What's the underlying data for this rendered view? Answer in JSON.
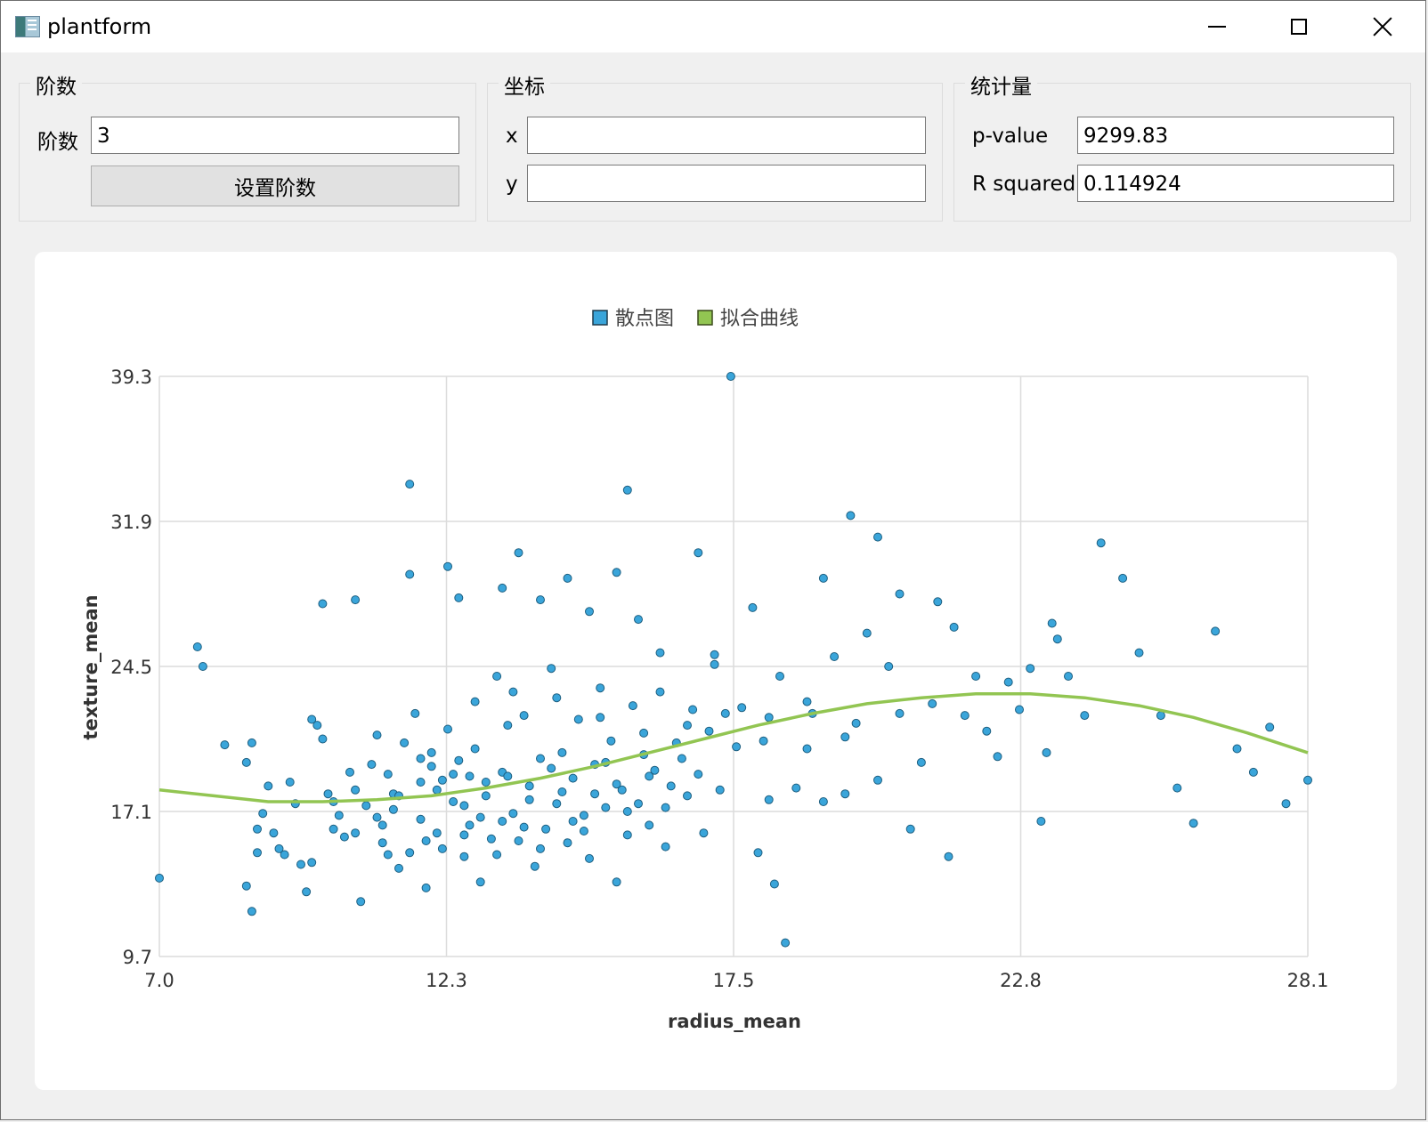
{
  "window": {
    "title": "plantform"
  },
  "groups": {
    "order": {
      "title": "阶数",
      "field_label": "阶数",
      "field_value": "3",
      "button_label": "设置阶数"
    },
    "coords": {
      "title": "坐标",
      "x_label": "x",
      "x_value": "",
      "y_label": "y",
      "y_value": ""
    },
    "stats": {
      "title": "统计量",
      "pvalue_label": "p-value",
      "pvalue_value": "9299.83",
      "r2_label": "R squared",
      "r2_value": "0.114924"
    }
  },
  "colors": {
    "scatter": "#3aa5da",
    "scatter_edge": "#1e5f80",
    "curve": "#92c552",
    "grid": "#dcdcdc"
  },
  "chart_data": {
    "type": "scatter",
    "xlabel": "radius_mean",
    "ylabel": "texture_mean",
    "xlim": [
      7.0,
      28.1
    ],
    "ylim": [
      9.7,
      39.3
    ],
    "x_ticks": [
      "7.0",
      "12.3",
      "17.5",
      "22.8",
      "28.1"
    ],
    "y_ticks": [
      "39.3",
      "31.9",
      "24.5",
      "17.1",
      "9.7"
    ],
    "grid": true,
    "legend_position": "top-center",
    "series": [
      {
        "name": "散点图",
        "kind": "scatter",
        "points": [
          [
            7.0,
            13.7
          ],
          [
            7.7,
            25.5
          ],
          [
            7.8,
            24.5
          ],
          [
            8.2,
            20.5
          ],
          [
            8.6,
            19.6
          ],
          [
            8.7,
            20.6
          ],
          [
            8.6,
            13.3
          ],
          [
            8.7,
            12.0
          ],
          [
            8.8,
            16.2
          ],
          [
            8.8,
            15.0
          ],
          [
            8.9,
            17.0
          ],
          [
            9.0,
            18.4
          ],
          [
            9.1,
            16.0
          ],
          [
            9.2,
            15.2
          ],
          [
            9.3,
            14.9
          ],
          [
            9.4,
            18.6
          ],
          [
            9.5,
            17.5
          ],
          [
            9.6,
            14.4
          ],
          [
            9.7,
            13.0
          ],
          [
            9.8,
            14.5
          ],
          [
            9.8,
            21.8
          ],
          [
            9.9,
            21.5
          ],
          [
            10.0,
            20.8
          ],
          [
            10.0,
            27.7
          ],
          [
            10.1,
            18.0
          ],
          [
            10.2,
            16.2
          ],
          [
            10.3,
            16.9
          ],
          [
            10.4,
            15.8
          ],
          [
            10.5,
            19.1
          ],
          [
            10.6,
            18.2
          ],
          [
            10.6,
            27.9
          ],
          [
            10.7,
            12.5
          ],
          [
            10.8,
            17.4
          ],
          [
            10.9,
            19.5
          ],
          [
            11.0,
            21.0
          ],
          [
            11.1,
            15.5
          ],
          [
            11.1,
            16.4
          ],
          [
            11.2,
            19.0
          ],
          [
            11.3,
            18.0
          ],
          [
            11.3,
            17.2
          ],
          [
            11.4,
            14.2
          ],
          [
            11.5,
            20.6
          ],
          [
            11.6,
            15.0
          ],
          [
            11.7,
            22.1
          ],
          [
            11.8,
            18.6
          ],
          [
            11.8,
            16.7
          ],
          [
            11.9,
            13.2
          ],
          [
            12.0,
            19.4
          ],
          [
            12.1,
            18.2
          ],
          [
            12.1,
            16.0
          ],
          [
            12.2,
            15.2
          ],
          [
            12.3,
            21.3
          ],
          [
            12.4,
            17.6
          ],
          [
            12.5,
            19.7
          ],
          [
            12.6,
            14.8
          ],
          [
            12.7,
            18.9
          ],
          [
            12.7,
            16.4
          ],
          [
            12.8,
            20.3
          ],
          [
            12.9,
            13.5
          ],
          [
            13.0,
            17.9
          ],
          [
            13.1,
            15.7
          ],
          [
            13.2,
            24.0
          ],
          [
            13.3,
            19.1
          ],
          [
            13.3,
            16.6
          ],
          [
            13.4,
            21.5
          ],
          [
            13.5,
            17.0
          ],
          [
            13.6,
            15.6
          ],
          [
            13.7,
            22.0
          ],
          [
            13.8,
            18.4
          ],
          [
            13.9,
            14.3
          ],
          [
            14.0,
            19.8
          ],
          [
            14.1,
            16.2
          ],
          [
            14.2,
            24.4
          ],
          [
            14.3,
            17.5
          ],
          [
            14.4,
            20.1
          ],
          [
            14.5,
            15.5
          ],
          [
            14.6,
            18.8
          ],
          [
            14.7,
            21.8
          ],
          [
            14.8,
            16.9
          ],
          [
            14.9,
            14.7
          ],
          [
            15.0,
            19.5
          ],
          [
            15.1,
            23.4
          ],
          [
            15.2,
            17.3
          ],
          [
            15.3,
            20.7
          ],
          [
            15.4,
            13.5
          ],
          [
            15.5,
            18.2
          ],
          [
            15.6,
            15.9
          ],
          [
            15.7,
            22.5
          ],
          [
            15.8,
            17.5
          ],
          [
            15.9,
            20.0
          ],
          [
            16.0,
            16.4
          ],
          [
            16.1,
            19.2
          ],
          [
            16.2,
            23.2
          ],
          [
            16.3,
            15.3
          ],
          [
            16.4,
            18.4
          ],
          [
            16.5,
            20.6
          ],
          [
            16.7,
            17.9
          ],
          [
            16.8,
            22.3
          ],
          [
            16.9,
            19.0
          ],
          [
            17.0,
            16.0
          ],
          [
            17.1,
            21.2
          ],
          [
            17.2,
            24.6
          ],
          [
            17.3,
            18.2
          ],
          [
            17.5,
            39.3
          ],
          [
            17.6,
            20.4
          ],
          [
            17.7,
            22.4
          ],
          [
            17.9,
            27.5
          ],
          [
            18.0,
            15.0
          ],
          [
            18.1,
            20.7
          ],
          [
            18.2,
            17.7
          ],
          [
            18.3,
            13.4
          ],
          [
            18.4,
            24.0
          ],
          [
            18.5,
            10.4
          ],
          [
            18.7,
            18.3
          ],
          [
            18.9,
            20.3
          ],
          [
            19.0,
            22.1
          ],
          [
            19.2,
            17.6
          ],
          [
            19.4,
            25.0
          ],
          [
            19.6,
            18.0
          ],
          [
            19.8,
            21.6
          ],
          [
            20.0,
            26.2
          ],
          [
            20.2,
            18.7
          ],
          [
            20.4,
            24.5
          ],
          [
            20.6,
            22.1
          ],
          [
            20.8,
            16.2
          ],
          [
            21.0,
            19.6
          ],
          [
            21.2,
            22.6
          ],
          [
            21.3,
            27.8
          ],
          [
            21.5,
            14.8
          ],
          [
            21.6,
            26.5
          ],
          [
            21.8,
            22.0
          ],
          [
            22.0,
            24.0
          ],
          [
            22.2,
            21.2
          ],
          [
            22.4,
            19.9
          ],
          [
            22.6,
            23.7
          ],
          [
            22.8,
            22.3
          ],
          [
            23.0,
            24.4
          ],
          [
            23.2,
            16.6
          ],
          [
            23.3,
            20.1
          ],
          [
            23.5,
            25.9
          ],
          [
            23.7,
            24.0
          ],
          [
            24.0,
            22.0
          ],
          [
            24.3,
            30.8
          ],
          [
            24.7,
            29.0
          ],
          [
            25.0,
            25.2
          ],
          [
            25.4,
            22.0
          ],
          [
            25.7,
            18.3
          ],
          [
            26.0,
            16.5
          ],
          [
            26.4,
            26.3
          ],
          [
            26.8,
            20.3
          ],
          [
            27.1,
            19.1
          ],
          [
            27.4,
            21.4
          ],
          [
            27.7,
            17.5
          ],
          [
            28.1,
            18.7
          ],
          [
            11.6,
            33.8
          ],
          [
            15.6,
            33.5
          ],
          [
            16.9,
            30.3
          ],
          [
            12.3,
            29.6
          ],
          [
            13.6,
            30.3
          ],
          [
            14.5,
            29.0
          ],
          [
            15.4,
            29.3
          ],
          [
            20.6,
            28.2
          ],
          [
            19.2,
            29.0
          ],
          [
            23.4,
            26.7
          ],
          [
            19.7,
            32.2
          ],
          [
            20.2,
            31.1
          ],
          [
            11.6,
            29.2
          ],
          [
            12.5,
            28.0
          ],
          [
            13.3,
            28.5
          ],
          [
            14.0,
            27.9
          ],
          [
            14.9,
            27.3
          ],
          [
            15.8,
            26.9
          ],
          [
            16.2,
            25.2
          ],
          [
            17.2,
            25.1
          ],
          [
            12.0,
            20.1
          ],
          [
            12.4,
            19.0
          ],
          [
            12.6,
            17.4
          ],
          [
            13.0,
            18.6
          ],
          [
            13.4,
            18.9
          ],
          [
            13.8,
            17.7
          ],
          [
            14.2,
            19.3
          ],
          [
            14.6,
            16.6
          ],
          [
            15.0,
            18.0
          ],
          [
            15.4,
            18.5
          ],
          [
            11.0,
            16.8
          ],
          [
            11.4,
            17.9
          ],
          [
            11.8,
            19.8
          ],
          [
            12.2,
            18.7
          ],
          [
            12.9,
            16.8
          ],
          [
            13.7,
            16.3
          ],
          [
            14.4,
            18.1
          ],
          [
            15.2,
            19.6
          ],
          [
            16.0,
            18.9
          ],
          [
            16.6,
            19.8
          ],
          [
            10.2,
            17.6
          ],
          [
            10.6,
            16.0
          ],
          [
            11.2,
            14.9
          ],
          [
            11.9,
            15.6
          ],
          [
            12.6,
            15.9
          ],
          [
            13.2,
            14.9
          ],
          [
            14.0,
            15.2
          ],
          [
            14.8,
            16.1
          ],
          [
            15.6,
            17.1
          ],
          [
            16.3,
            17.3
          ],
          [
            12.8,
            22.7
          ],
          [
            13.5,
            23.2
          ],
          [
            14.3,
            22.9
          ],
          [
            15.1,
            21.9
          ],
          [
            15.9,
            21.1
          ],
          [
            16.7,
            21.5
          ],
          [
            17.4,
            22.1
          ],
          [
            18.2,
            21.9
          ],
          [
            18.9,
            22.7
          ],
          [
            19.6,
            20.9
          ]
        ]
      },
      {
        "name": "拟合曲线",
        "kind": "curve",
        "polyfit_degree": 3,
        "points": [
          [
            7.0,
            18.2
          ],
          [
            8.0,
            17.9
          ],
          [
            9.0,
            17.6
          ],
          [
            10.0,
            17.6
          ],
          [
            11.0,
            17.7
          ],
          [
            12.0,
            17.9
          ],
          [
            13.0,
            18.3
          ],
          [
            14.0,
            18.8
          ],
          [
            15.0,
            19.4
          ],
          [
            16.0,
            20.1
          ],
          [
            17.0,
            20.8
          ],
          [
            18.0,
            21.5
          ],
          [
            19.0,
            22.1
          ],
          [
            20.0,
            22.6
          ],
          [
            21.0,
            22.9
          ],
          [
            22.0,
            23.1
          ],
          [
            23.0,
            23.1
          ],
          [
            24.0,
            22.9
          ],
          [
            25.0,
            22.5
          ],
          [
            26.0,
            21.9
          ],
          [
            27.0,
            21.1
          ],
          [
            28.1,
            20.1
          ]
        ]
      }
    ]
  }
}
